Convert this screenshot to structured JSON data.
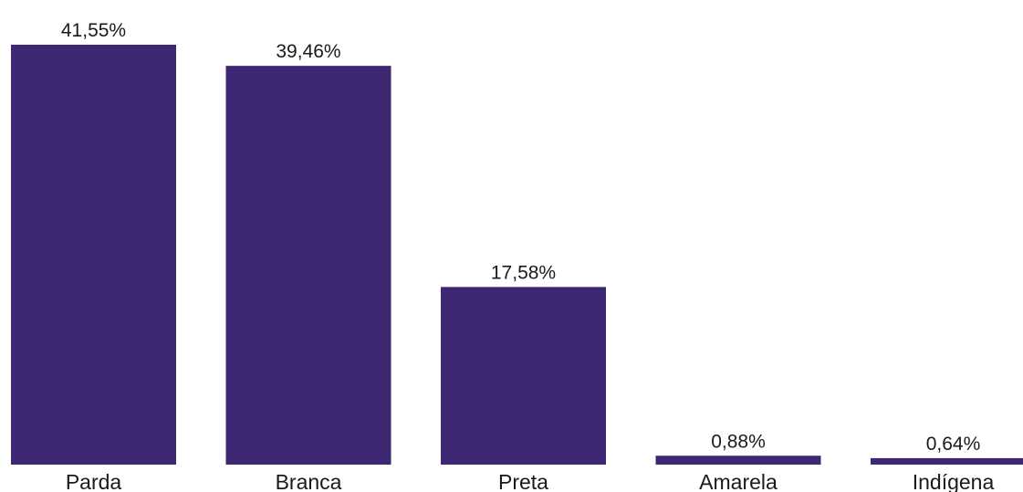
{
  "chart_data": {
    "type": "bar",
    "categories": [
      "Parda",
      "Branca",
      "Preta",
      "Amarela",
      "Indígena"
    ],
    "values": [
      41.55,
      39.46,
      17.58,
      0.88,
      0.64
    ],
    "value_labels": [
      "41,55%",
      "39,46%",
      "17,58%",
      "0,88%",
      "0,64%"
    ],
    "bar_color": "#3f2873",
    "ylim": [
      0,
      41.55
    ],
    "grid": false,
    "legend": "none"
  }
}
